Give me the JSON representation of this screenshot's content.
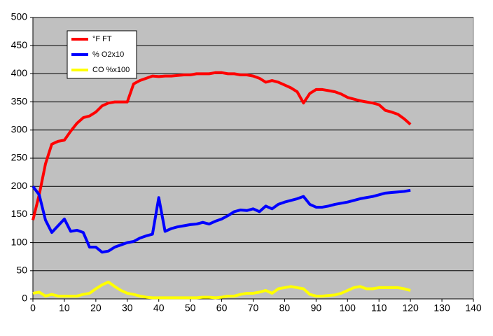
{
  "chart_data": {
    "type": "line",
    "x": [
      0,
      2,
      4,
      6,
      8,
      10,
      12,
      14,
      16,
      18,
      20,
      22,
      24,
      26,
      28,
      30,
      32,
      34,
      36,
      38,
      40,
      42,
      44,
      46,
      48,
      50,
      52,
      54,
      56,
      58,
      60,
      62,
      64,
      66,
      68,
      70,
      72,
      74,
      76,
      78,
      80,
      82,
      84,
      86,
      88,
      90,
      92,
      94,
      96,
      98,
      100,
      102,
      104,
      106,
      108,
      110,
      112,
      114,
      116,
      118,
      120
    ],
    "series": [
      {
        "name": "°F FT",
        "color": "#ff0000",
        "values": [
          140,
          185,
          240,
          275,
          280,
          282,
          298,
          312,
          322,
          325,
          332,
          343,
          348,
          350,
          350,
          350,
          382,
          388,
          392,
          396,
          395,
          396,
          396,
          397,
          398,
          398,
          400,
          400,
          400,
          402,
          402,
          400,
          400,
          398,
          398,
          396,
          392,
          385,
          388,
          385,
          380,
          375,
          368,
          348,
          365,
          372,
          372,
          370,
          368,
          364,
          358,
          355,
          352,
          350,
          348,
          345,
          335,
          332,
          328,
          320,
          310
        ]
      },
      {
        "name": "% O2x10",
        "color": "#0000ff",
        "values": [
          200,
          185,
          140,
          118,
          130,
          142,
          120,
          122,
          118,
          92,
          92,
          83,
          85,
          92,
          96,
          100,
          102,
          108,
          112,
          115,
          180,
          120,
          125,
          128,
          130,
          132,
          133,
          136,
          133,
          138,
          142,
          148,
          155,
          158,
          157,
          160,
          155,
          165,
          160,
          168,
          172,
          175,
          178,
          182,
          168,
          163,
          163,
          165,
          168,
          170,
          172,
          175,
          178,
          180,
          182,
          185,
          188,
          189,
          190,
          191,
          193
        ]
      },
      {
        "name": "CO %x100",
        "color": "#ffff00",
        "values": [
          10,
          12,
          5,
          8,
          5,
          5,
          5,
          5,
          8,
          10,
          18,
          25,
          30,
          22,
          15,
          10,
          8,
          5,
          3,
          2,
          2,
          2,
          2,
          2,
          2,
          2,
          2,
          3,
          3,
          2,
          3,
          5,
          5,
          8,
          10,
          10,
          12,
          15,
          10,
          18,
          20,
          22,
          20,
          18,
          8,
          5,
          5,
          6,
          7,
          10,
          15,
          20,
          22,
          18,
          18,
          20,
          20,
          20,
          20,
          18,
          15
        ]
      }
    ],
    "xlim": [
      0,
      140
    ],
    "xticks": [
      0,
      10,
      20,
      30,
      40,
      50,
      60,
      70,
      80,
      90,
      100,
      110,
      120,
      130,
      140
    ],
    "ylim": [
      0,
      500
    ],
    "yticks": [
      0,
      50,
      100,
      150,
      200,
      250,
      300,
      350,
      400,
      450,
      500
    ],
    "grid": true,
    "legend": "top-left"
  }
}
